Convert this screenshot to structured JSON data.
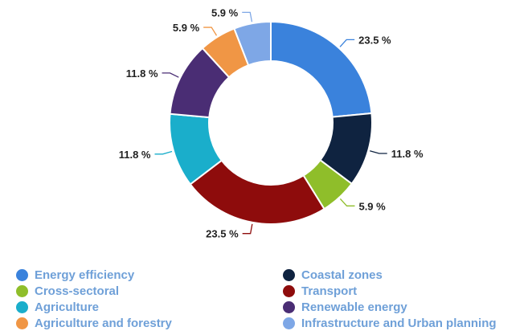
{
  "chart_data": {
    "type": "pie",
    "donut": true,
    "title": "",
    "slices": [
      {
        "name": "Energy efficiency",
        "value": 23.5,
        "label": "23.5 %",
        "color": "#3a82dc"
      },
      {
        "name": "Coastal zones",
        "value": 11.8,
        "label": "11.8 %",
        "color": "#0f2340"
      },
      {
        "name": "Cross-sectoral",
        "value": 5.9,
        "label": "5.9 %",
        "color": "#8fbe2a"
      },
      {
        "name": "Transport",
        "value": 23.5,
        "label": "23.5 %",
        "color": "#8e0c0c"
      },
      {
        "name": "Agriculture",
        "value": 11.8,
        "label": "11.8 %",
        "color": "#1aaecb"
      },
      {
        "name": "Renewable energy",
        "value": 11.8,
        "label": "11.8 %",
        "color": "#4a2d74"
      },
      {
        "name": "Agriculture and forestry",
        "value": 5.9,
        "label": "5.9 %",
        "color": "#f09645"
      },
      {
        "name": "Infrastructure and Urban planning",
        "value": 5.9,
        "label": "5.9 %",
        "color": "#7ea7e6"
      }
    ],
    "legend_placement": "bottom",
    "legend_columns": 2
  }
}
